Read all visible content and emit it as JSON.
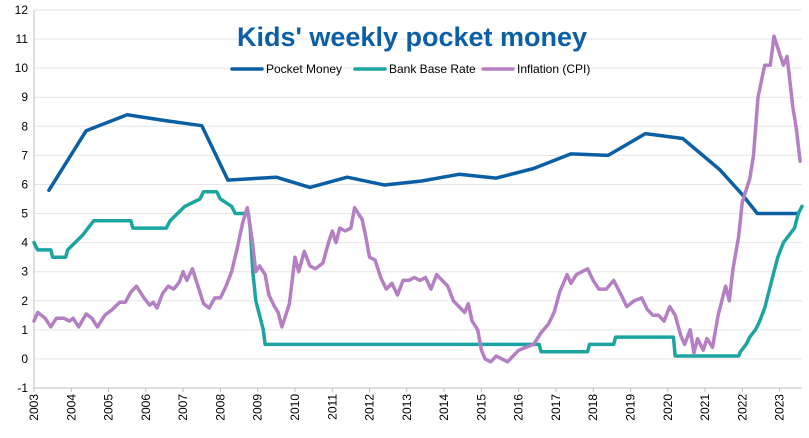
{
  "chart_data": {
    "type": "line",
    "title": "Kids' weekly pocket money",
    "xlabel": "",
    "ylabel": "",
    "xlim": [
      2003.0,
      2023.6
    ],
    "ylim": [
      -1,
      12
    ],
    "yticks": [
      -1,
      0,
      1,
      2,
      3,
      4,
      5,
      6,
      7,
      8,
      9,
      10,
      11,
      12
    ],
    "xticks": [
      "2003",
      "2004",
      "2005",
      "2006",
      "2007",
      "2008",
      "2009",
      "2010",
      "2011",
      "2012",
      "2013",
      "2014",
      "2015",
      "2016",
      "2017",
      "2018",
      "2019",
      "2020",
      "2021",
      "2022",
      "2023"
    ],
    "grid": true,
    "legend_position": "top-center",
    "series": [
      {
        "name": "Pocket Money",
        "color": "#0b5fa5",
        "points": [
          [
            2003.4,
            5.8
          ],
          [
            2004.4,
            7.85
          ],
          [
            2005.5,
            8.4
          ],
          [
            2006.5,
            8.2
          ],
          [
            2007.5,
            8.02
          ],
          [
            2008.2,
            6.15
          ],
          [
            2009.5,
            6.25
          ],
          [
            2010.4,
            5.9
          ],
          [
            2011.4,
            6.25
          ],
          [
            2012.4,
            5.98
          ],
          [
            2013.4,
            6.12
          ],
          [
            2014.4,
            6.35
          ],
          [
            2015.4,
            6.22
          ],
          [
            2016.4,
            6.55
          ],
          [
            2017.4,
            7.05
          ],
          [
            2018.4,
            7.0
          ],
          [
            2019.4,
            7.75
          ],
          [
            2020.4,
            7.58
          ],
          [
            2021.4,
            6.5
          ],
          [
            2022.0,
            5.65
          ],
          [
            2022.4,
            5.0
          ],
          [
            2023.0,
            5.0
          ],
          [
            2023.5,
            5.0
          ]
        ]
      },
      {
        "name": "Bank Base Rate",
        "color": "#1ca5a0",
        "points": [
          [
            2003.0,
            4.0
          ],
          [
            2003.1,
            3.75
          ],
          [
            2003.45,
            3.75
          ],
          [
            2003.5,
            3.5
          ],
          [
            2003.85,
            3.5
          ],
          [
            2003.9,
            3.75
          ],
          [
            2004.1,
            4.0
          ],
          [
            2004.3,
            4.25
          ],
          [
            2004.45,
            4.5
          ],
          [
            2004.6,
            4.75
          ],
          [
            2005.6,
            4.75
          ],
          [
            2005.65,
            4.5
          ],
          [
            2006.55,
            4.5
          ],
          [
            2006.65,
            4.75
          ],
          [
            2006.85,
            5.0
          ],
          [
            2007.05,
            5.25
          ],
          [
            2007.45,
            5.5
          ],
          [
            2007.55,
            5.75
          ],
          [
            2007.9,
            5.75
          ],
          [
            2008.0,
            5.5
          ],
          [
            2008.3,
            5.25
          ],
          [
            2008.4,
            5.0
          ],
          [
            2008.75,
            5.0
          ],
          [
            2008.8,
            4.5
          ],
          [
            2008.87,
            3.0
          ],
          [
            2008.95,
            2.0
          ],
          [
            2009.05,
            1.5
          ],
          [
            2009.15,
            1.0
          ],
          [
            2009.2,
            0.5
          ],
          [
            2016.55,
            0.5
          ],
          [
            2016.6,
            0.25
          ],
          [
            2017.85,
            0.25
          ],
          [
            2017.9,
            0.5
          ],
          [
            2018.55,
            0.5
          ],
          [
            2018.6,
            0.75
          ],
          [
            2020.15,
            0.75
          ],
          [
            2020.2,
            0.1
          ],
          [
            2021.9,
            0.1
          ],
          [
            2021.95,
            0.25
          ],
          [
            2022.1,
            0.5
          ],
          [
            2022.2,
            0.75
          ],
          [
            2022.35,
            1.0
          ],
          [
            2022.45,
            1.25
          ],
          [
            2022.6,
            1.75
          ],
          [
            2022.7,
            2.25
          ],
          [
            2022.85,
            3.0
          ],
          [
            2022.95,
            3.5
          ],
          [
            2023.1,
            4.0
          ],
          [
            2023.25,
            4.25
          ],
          [
            2023.4,
            4.5
          ],
          [
            2023.5,
            5.0
          ],
          [
            2023.6,
            5.25
          ]
        ]
      },
      {
        "name": "Inflation (CPI)",
        "color": "#b57fc4",
        "points": [
          [
            2003.0,
            1.3
          ],
          [
            2003.1,
            1.6
          ],
          [
            2003.3,
            1.4
          ],
          [
            2003.45,
            1.1
          ],
          [
            2003.6,
            1.4
          ],
          [
            2003.8,
            1.4
          ],
          [
            2003.95,
            1.3
          ],
          [
            2004.05,
            1.4
          ],
          [
            2004.2,
            1.1
          ],
          [
            2004.4,
            1.55
          ],
          [
            2004.55,
            1.4
          ],
          [
            2004.7,
            1.1
          ],
          [
            2004.9,
            1.5
          ],
          [
            2005.1,
            1.7
          ],
          [
            2005.3,
            1.95
          ],
          [
            2005.45,
            1.95
          ],
          [
            2005.6,
            2.3
          ],
          [
            2005.75,
            2.5
          ],
          [
            2005.95,
            2.1
          ],
          [
            2006.1,
            1.85
          ],
          [
            2006.2,
            1.95
          ],
          [
            2006.3,
            1.75
          ],
          [
            2006.45,
            2.25
          ],
          [
            2006.6,
            2.5
          ],
          [
            2006.75,
            2.4
          ],
          [
            2006.9,
            2.65
          ],
          [
            2007.0,
            3.0
          ],
          [
            2007.1,
            2.7
          ],
          [
            2007.25,
            3.1
          ],
          [
            2007.4,
            2.5
          ],
          [
            2007.55,
            1.9
          ],
          [
            2007.7,
            1.75
          ],
          [
            2007.85,
            2.1
          ],
          [
            2008.0,
            2.1
          ],
          [
            2008.15,
            2.5
          ],
          [
            2008.3,
            3.0
          ],
          [
            2008.45,
            3.8
          ],
          [
            2008.6,
            4.7
          ],
          [
            2008.72,
            5.2
          ],
          [
            2008.85,
            4.1
          ],
          [
            2008.95,
            3.0
          ],
          [
            2009.05,
            3.2
          ],
          [
            2009.2,
            2.9
          ],
          [
            2009.3,
            2.2
          ],
          [
            2009.45,
            1.8
          ],
          [
            2009.55,
            1.6
          ],
          [
            2009.65,
            1.1
          ],
          [
            2009.75,
            1.5
          ],
          [
            2009.85,
            1.9
          ],
          [
            2010.0,
            3.5
          ],
          [
            2010.1,
            3.0
          ],
          [
            2010.25,
            3.7
          ],
          [
            2010.4,
            3.2
          ],
          [
            2010.55,
            3.1
          ],
          [
            2010.75,
            3.3
          ],
          [
            2010.9,
            4.0
          ],
          [
            2011.0,
            4.4
          ],
          [
            2011.1,
            4.0
          ],
          [
            2011.2,
            4.5
          ],
          [
            2011.35,
            4.4
          ],
          [
            2011.5,
            4.5
          ],
          [
            2011.6,
            5.2
          ],
          [
            2011.8,
            4.8
          ],
          [
            2011.9,
            4.2
          ],
          [
            2012.0,
            3.5
          ],
          [
            2012.15,
            3.4
          ],
          [
            2012.3,
            2.8
          ],
          [
            2012.45,
            2.4
          ],
          [
            2012.6,
            2.6
          ],
          [
            2012.75,
            2.2
          ],
          [
            2012.9,
            2.7
          ],
          [
            2013.05,
            2.7
          ],
          [
            2013.2,
            2.8
          ],
          [
            2013.35,
            2.7
          ],
          [
            2013.5,
            2.8
          ],
          [
            2013.65,
            2.4
          ],
          [
            2013.8,
            2.9
          ],
          [
            2013.95,
            2.7
          ],
          [
            2014.1,
            2.5
          ],
          [
            2014.25,
            2.0
          ],
          [
            2014.4,
            1.8
          ],
          [
            2014.55,
            1.6
          ],
          [
            2014.65,
            1.9
          ],
          [
            2014.75,
            1.3
          ],
          [
            2014.9,
            1.0
          ],
          [
            2015.0,
            0.3
          ],
          [
            2015.1,
            0.0
          ],
          [
            2015.25,
            -0.1
          ],
          [
            2015.4,
            0.1
          ],
          [
            2015.55,
            0.0
          ],
          [
            2015.7,
            -0.1
          ],
          [
            2015.85,
            0.1
          ],
          [
            2016.0,
            0.3
          ],
          [
            2016.2,
            0.4
          ],
          [
            2016.4,
            0.5
          ],
          [
            2016.6,
            0.9
          ],
          [
            2016.8,
            1.2
          ],
          [
            2016.95,
            1.6
          ],
          [
            2017.1,
            2.3
          ],
          [
            2017.3,
            2.9
          ],
          [
            2017.4,
            2.6
          ],
          [
            2017.55,
            2.9
          ],
          [
            2017.7,
            3.0
          ],
          [
            2017.85,
            3.1
          ],
          [
            2018.0,
            2.7
          ],
          [
            2018.15,
            2.4
          ],
          [
            2018.35,
            2.4
          ],
          [
            2018.55,
            2.7
          ],
          [
            2018.75,
            2.2
          ],
          [
            2018.9,
            1.8
          ],
          [
            2019.1,
            2.0
          ],
          [
            2019.3,
            2.1
          ],
          [
            2019.45,
            1.7
          ],
          [
            2019.6,
            1.5
          ],
          [
            2019.75,
            1.5
          ],
          [
            2019.9,
            1.3
          ],
          [
            2020.05,
            1.8
          ],
          [
            2020.2,
            1.5
          ],
          [
            2020.35,
            0.8
          ],
          [
            2020.45,
            0.5
          ],
          [
            2020.6,
            1.0
          ],
          [
            2020.7,
            0.2
          ],
          [
            2020.8,
            0.7
          ],
          [
            2020.95,
            0.3
          ],
          [
            2021.05,
            0.7
          ],
          [
            2021.2,
            0.4
          ],
          [
            2021.35,
            1.5
          ],
          [
            2021.55,
            2.5
          ],
          [
            2021.65,
            2.0
          ],
          [
            2021.75,
            3.1
          ],
          [
            2021.9,
            4.2
          ],
          [
            2022.0,
            5.4
          ],
          [
            2022.2,
            6.2
          ],
          [
            2022.3,
            7.0
          ],
          [
            2022.42,
            9.0
          ],
          [
            2022.6,
            10.1
          ],
          [
            2022.75,
            10.1
          ],
          [
            2022.85,
            11.1
          ],
          [
            2023.0,
            10.5
          ],
          [
            2023.1,
            10.1
          ],
          [
            2023.2,
            10.4
          ],
          [
            2023.35,
            8.7
          ],
          [
            2023.45,
            7.9
          ],
          [
            2023.55,
            6.8
          ]
        ]
      }
    ]
  }
}
